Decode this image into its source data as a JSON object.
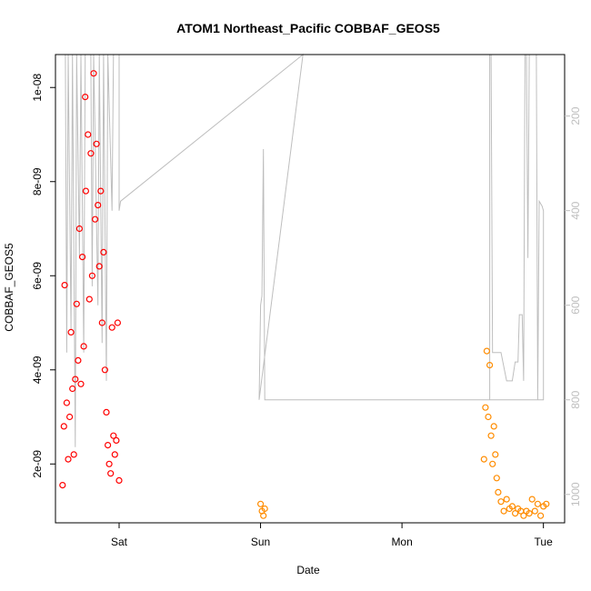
{
  "chart_data": {
    "type": "scatter",
    "title": "ATOM1 Northeast_Pacific COBBAF_GEOS5",
    "xlabel": "Date",
    "ylabel": "COBBAF_GEOS5",
    "x_ticks": [
      "Sat",
      "Sun",
      "Mon",
      "Tue"
    ],
    "xlim": [
      -0.45,
      3.15
    ],
    "ylim": [
      7.5e-10,
      1.07e-08
    ],
    "y_ticks": [
      2e-09,
      4e-09,
      6e-09,
      8e-09,
      1e-08
    ],
    "y_tick_labels": [
      "2e-09",
      "4e-09",
      "6e-09",
      "8e-09",
      "1e-08"
    ],
    "right_axis": {
      "ticks": [
        200,
        400,
        600,
        800,
        1000
      ],
      "tick_labels": [
        "200",
        "400",
        "600",
        "800",
        "1000"
      ],
      "lim": [
        70,
        1060
      ],
      "reversed": true,
      "color": "#bebebe"
    },
    "colors": {
      "series1": "#ff0000",
      "series2": "#ff8c00",
      "altitude": "#bebebe"
    },
    "series": [
      {
        "marker": "open-circle",
        "color": "#ff0000",
        "points": [
          [
            -0.4,
            1.55e-09
          ],
          [
            -0.39,
            2.8e-09
          ],
          [
            -0.385,
            5.8e-09
          ],
          [
            -0.37,
            3.3e-09
          ],
          [
            -0.36,
            2.1e-09
          ],
          [
            -0.35,
            3e-09
          ],
          [
            -0.34,
            4.8e-09
          ],
          [
            -0.33,
            3.6e-09
          ],
          [
            -0.32,
            2.2e-09
          ],
          [
            -0.31,
            3.8e-09
          ],
          [
            -0.3,
            5.4e-09
          ],
          [
            -0.29,
            4.2e-09
          ],
          [
            -0.28,
            7e-09
          ],
          [
            -0.27,
            3.7e-09
          ],
          [
            -0.26,
            6.4e-09
          ],
          [
            -0.25,
            4.5e-09
          ],
          [
            -0.24,
            9.8e-09
          ],
          [
            -0.235,
            7.8e-09
          ],
          [
            -0.22,
            9e-09
          ],
          [
            -0.21,
            5.5e-09
          ],
          [
            -0.2,
            8.6e-09
          ],
          [
            -0.19,
            6e-09
          ],
          [
            -0.18,
            1.03e-08
          ],
          [
            -0.17,
            7.2e-09
          ],
          [
            -0.16,
            8.8e-09
          ],
          [
            -0.15,
            7.5e-09
          ],
          [
            -0.14,
            6.2e-09
          ],
          [
            -0.13,
            7.8e-09
          ],
          [
            -0.12,
            5e-09
          ],
          [
            -0.11,
            6.5e-09
          ],
          [
            -0.1,
            4e-09
          ],
          [
            -0.09,
            3.1e-09
          ],
          [
            -0.08,
            2.4e-09
          ],
          [
            -0.07,
            2e-09
          ],
          [
            -0.06,
            1.8e-09
          ],
          [
            -0.05,
            4.9e-09
          ],
          [
            -0.04,
            2.6e-09
          ],
          [
            -0.03,
            2.2e-09
          ],
          [
            -0.02,
            2.5e-09
          ],
          [
            -0.01,
            5e-09
          ],
          [
            0.0,
            1.65e-09
          ]
        ]
      },
      {
        "marker": "open-circle",
        "color": "#ff8c00",
        "points": [
          [
            1.0,
            1.15e-09
          ],
          [
            1.01,
            1e-09
          ],
          [
            1.02,
            9e-10
          ],
          [
            1.03,
            1.05e-09
          ],
          [
            2.58,
            2.1e-09
          ],
          [
            2.59,
            3.2e-09
          ],
          [
            2.6,
            4.4e-09
          ],
          [
            2.61,
            3e-09
          ],
          [
            2.62,
            4.1e-09
          ],
          [
            2.63,
            2.6e-09
          ],
          [
            2.64,
            2e-09
          ],
          [
            2.65,
            2.8e-09
          ],
          [
            2.66,
            2.2e-09
          ],
          [
            2.67,
            1.7e-09
          ],
          [
            2.68,
            1.4e-09
          ],
          [
            2.7,
            1.2e-09
          ],
          [
            2.72,
            1e-09
          ],
          [
            2.74,
            1.25e-09
          ],
          [
            2.76,
            1.05e-09
          ],
          [
            2.78,
            1.1e-09
          ],
          [
            2.8,
            9.5e-10
          ],
          [
            2.82,
            1.05e-09
          ],
          [
            2.84,
            1e-09
          ],
          [
            2.86,
            9e-10
          ],
          [
            2.88,
            1e-09
          ],
          [
            2.9,
            9.5e-10
          ],
          [
            2.92,
            1.25e-09
          ],
          [
            2.94,
            1e-09
          ],
          [
            2.96,
            1.15e-09
          ],
          [
            2.98,
            9e-10
          ],
          [
            3.0,
            1.1e-09
          ],
          [
            3.02,
            1.15e-09
          ]
        ]
      }
    ],
    "altitude_line": [
      [
        -0.4,
        70
      ],
      [
        -0.38,
        70
      ],
      [
        -0.37,
        700
      ],
      [
        -0.36,
        70
      ],
      [
        -0.34,
        650
      ],
      [
        -0.33,
        70
      ],
      [
        -0.31,
        900
      ],
      [
        -0.3,
        70
      ],
      [
        -0.28,
        500
      ],
      [
        -0.27,
        70
      ],
      [
        -0.25,
        700
      ],
      [
        -0.24,
        70
      ],
      [
        -0.2,
        70
      ],
      [
        -0.19,
        560
      ],
      [
        -0.18,
        70
      ],
      [
        -0.15,
        600
      ],
      [
        -0.14,
        70
      ],
      [
        -0.12,
        680
      ],
      [
        -0.11,
        70
      ],
      [
        -0.09,
        760
      ],
      [
        -0.08,
        70
      ],
      [
        -0.05,
        400
      ],
      [
        -0.04,
        70
      ],
      [
        0.0,
        70
      ],
      [
        0.0,
        400
      ],
      [
        0.01,
        380
      ],
      [
        1.3,
        70
      ],
      [
        1.3,
        70
      ],
      [
        0.99,
        800
      ],
      [
        1.0,
        600
      ],
      [
        1.01,
        580
      ],
      [
        1.02,
        270
      ],
      [
        1.03,
        800
      ],
      [
        1.05,
        800
      ],
      [
        2.62,
        800
      ],
      [
        2.62,
        70
      ],
      [
        2.63,
        70
      ],
      [
        2.64,
        700
      ],
      [
        2.7,
        700
      ],
      [
        2.74,
        760
      ],
      [
        2.78,
        760
      ],
      [
        2.8,
        720
      ],
      [
        2.82,
        720
      ],
      [
        2.83,
        620
      ],
      [
        2.85,
        620
      ],
      [
        2.86,
        760
      ],
      [
        2.87,
        70
      ],
      [
        2.88,
        70
      ],
      [
        2.89,
        500
      ],
      [
        2.9,
        70
      ],
      [
        2.95,
        70
      ],
      [
        2.96,
        800
      ],
      [
        2.97,
        380
      ],
      [
        2.99,
        390
      ],
      [
        3.0,
        400
      ],
      [
        3.0,
        800
      ],
      [
        1.05,
        800
      ]
    ]
  }
}
